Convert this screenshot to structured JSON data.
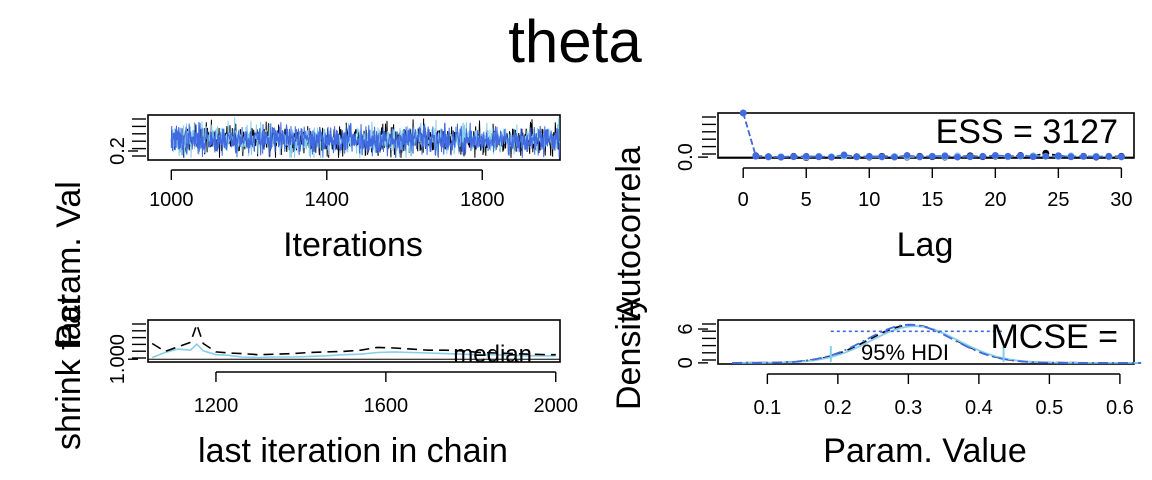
{
  "figure": {
    "title": "theta"
  },
  "chart_data": [
    {
      "id": "trace",
      "type": "line",
      "xlabel": "Iterations",
      "ylabel": "Param. Val",
      "xlim": [
        940,
        2000
      ],
      "ylim": [
        0.12,
        0.52
      ],
      "xticks": [
        1000,
        1400,
        1800
      ],
      "yticks": [
        0.2
      ],
      "ytick_labels": [
        "0.2"
      ],
      "series": [
        {
          "color": "#000000",
          "style": "solid",
          "n": 1000,
          "seed": 11,
          "mean": 0.3,
          "sd": 0.065
        },
        {
          "color": "#87ceeb",
          "style": "solid",
          "n": 1000,
          "seed": 23,
          "mean": 0.3,
          "sd": 0.065
        },
        {
          "color": "#4169e1",
          "style": "solid",
          "n": 1000,
          "seed": 37,
          "mean": 0.3,
          "sd": 0.065
        }
      ]
    },
    {
      "id": "autocorr",
      "type": "scatter",
      "xlabel": "Lag",
      "ylabel": "Autocorrela",
      "annotation": "ESS = 3127",
      "xlim": [
        -2,
        31
      ],
      "ylim": [
        -0.02,
        1.0
      ],
      "xticks": [
        0,
        5,
        10,
        15,
        20,
        25,
        30
      ],
      "yticks": [
        0.0
      ],
      "ytick_labels": [
        "0.0"
      ],
      "lags": [
        0,
        1,
        2,
        3,
        4,
        5,
        6,
        7,
        8,
        9,
        10,
        11,
        12,
        13,
        14,
        15,
        16,
        17,
        18,
        19,
        20,
        21,
        22,
        23,
        24,
        25,
        26,
        27,
        28,
        29,
        30
      ],
      "series": [
        {
          "color": "#000000",
          "values": [
            1.0,
            0.03,
            0.01,
            0.0,
            0.02,
            -0.01,
            0.01,
            0.0,
            0.03,
            0.01,
            0.0,
            0.02,
            0.01,
            0.0,
            0.02,
            0.01,
            0.0,
            0.02,
            0.03,
            0.01,
            0.02,
            0.01,
            0.04,
            0.02,
            0.09,
            0.03,
            0.01,
            0.02,
            0.0,
            0.01,
            0.02
          ]
        },
        {
          "color": "#87ceeb",
          "values": [
            1.0,
            0.02,
            0.0,
            0.01,
            0.01,
            0.0,
            0.02,
            0.01,
            0.02,
            0.0,
            0.01,
            0.0,
            0.02,
            0.01,
            0.0,
            0.02,
            0.01,
            0.03,
            0.01,
            0.02,
            0.03,
            0.01,
            0.02,
            0.03,
            0.02,
            0.01,
            0.03,
            0.01,
            0.02,
            0.01,
            0.0
          ]
        },
        {
          "color": "#4169e1",
          "values": [
            1.0,
            0.02,
            0.01,
            0.0,
            0.01,
            0.02,
            0.01,
            0.0,
            0.05,
            0.01,
            0.02,
            0.01,
            0.0,
            0.04,
            0.01,
            0.02,
            0.03,
            0.0,
            0.01,
            0.02,
            0.04,
            0.02,
            0.03,
            0.01,
            0.02,
            0.03,
            0.01,
            0.02,
            0.01,
            0.02,
            0.01
          ]
        }
      ]
    },
    {
      "id": "gelman",
      "type": "line",
      "xlabel": "last iteration in chain",
      "ylabel": "shrink fact",
      "annotation": "median",
      "xlim": [
        1040,
        2010
      ],
      "ylim": [
        0.995,
        1.07
      ],
      "xticks": [
        1200,
        1600,
        2000
      ],
      "yticks": [
        1.0
      ],
      "ytick_labels": [
        "1.000"
      ],
      "x": [
        1050,
        1080,
        1110,
        1140,
        1155,
        1170,
        1200,
        1230,
        1260,
        1300,
        1340,
        1380,
        1420,
        1460,
        1500,
        1540,
        1580,
        1620,
        1660,
        1700,
        1740,
        1780,
        1820,
        1860,
        1900,
        1940,
        1980,
        2000
      ],
      "series": [
        {
          "name": "median",
          "color": "#87ceeb",
          "style": "solid",
          "values": [
            1.003,
            1.012,
            1.018,
            1.016,
            1.027,
            1.015,
            1.008,
            1.007,
            1.004,
            1.003,
            1.004,
            1.004,
            1.005,
            1.006,
            1.008,
            1.009,
            1.012,
            1.013,
            1.012,
            1.011,
            1.01,
            1.009,
            1.008,
            1.008,
            1.007,
            1.006,
            1.006,
            1.006
          ]
        },
        {
          "color": "#000000",
          "style": "dashed",
          "values": [
            1.028,
            1.014,
            1.022,
            1.03,
            1.062,
            1.028,
            1.013,
            1.011,
            1.01,
            1.008,
            1.009,
            1.01,
            1.012,
            1.013,
            1.014,
            1.016,
            1.021,
            1.02,
            1.018,
            1.016,
            1.016,
            1.015,
            1.012,
            1.011,
            1.01,
            1.009,
            1.008,
            1.008
          ]
        }
      ]
    },
    {
      "id": "density",
      "type": "line",
      "xlabel": "Param. Value",
      "ylabel": "Density",
      "annotation": "MCSE =",
      "hdi_label": "95% HDI",
      "hdi": [
        0.19,
        0.435
      ],
      "hdi_y": 5.6,
      "xlim": [
        0.03,
        0.62
      ],
      "ylim": [
        -0.2,
        7.6
      ],
      "xticks": [
        0.1,
        0.2,
        0.3,
        0.4,
        0.5,
        0.6
      ],
      "yticks": [
        0,
        6
      ],
      "ytick_labels": [
        "0",
        "6"
      ],
      "density_mean": 0.305,
      "density_sd": 0.062,
      "series": [
        {
          "color": "#000000",
          "style": "dashed",
          "scale": 1.0,
          "shift": 0.0
        },
        {
          "color": "#87ceeb",
          "style": "solid",
          "scale": 0.97,
          "shift": 0.004
        },
        {
          "color": "#4169e1",
          "style": "dashdot",
          "scale": 1.01,
          "shift": -0.003
        }
      ]
    }
  ]
}
